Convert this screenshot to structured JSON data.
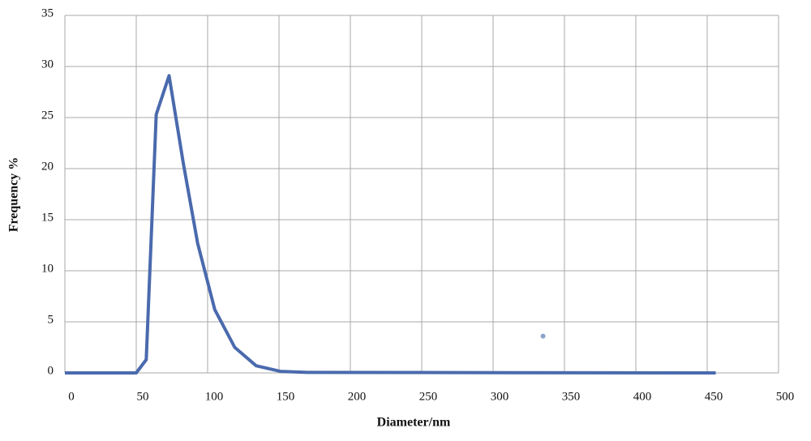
{
  "chart_data": {
    "type": "line",
    "x_label": "Diameter/nm",
    "y_label": "Frequency %",
    "series": [
      {
        "color": "#4a6aad",
        "x": [
          0,
          50,
          57,
          64,
          73,
          83,
          93,
          105,
          119,
          134,
          151,
          170,
          456
        ],
        "values": [
          0,
          0,
          1.3,
          25.3,
          29.1,
          20.5,
          12.7,
          6.2,
          2.5,
          0.7,
          0.15,
          0.05,
          0
        ]
      }
    ],
    "points": {
      "color": "#8ea3c9",
      "x": [
        335
      ],
      "values": [
        3.6
      ]
    },
    "xlim": [
      0,
      500
    ],
    "xticks": [
      0,
      50,
      100,
      150,
      200,
      250,
      300,
      350,
      400,
      450,
      500
    ],
    "ylim": [
      0,
      35
    ],
    "yticks": [
      0,
      5,
      10,
      15,
      20,
      25,
      30,
      35
    ],
    "grid": true
  }
}
